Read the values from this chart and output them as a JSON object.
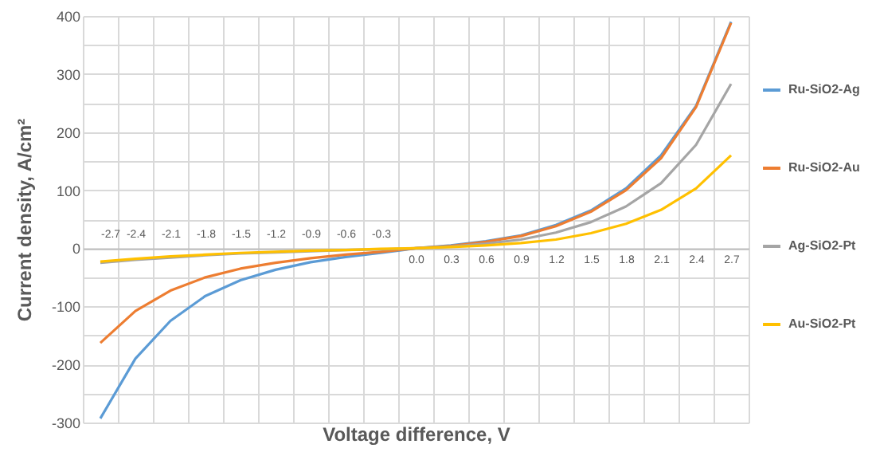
{
  "chart_data": {
    "type": "line",
    "xlabel": "Voltage difference, V",
    "ylabel": "Current density, A/cm²",
    "categories": [
      "-2.7",
      "-2.4",
      "-2.1",
      "-1.8",
      "-1.5",
      "-1.2",
      "-0.9",
      "-0.6",
      "-0.3",
      "0.0",
      "0.3",
      "0.6",
      "0.9",
      "1.2",
      "1.5",
      "1.8",
      "2.1",
      "2.4",
      "2.7"
    ],
    "series": [
      {
        "name": "Ru-SiO2-Ag",
        "color": "#5b9bd5",
        "values": [
          -293,
          -190,
          -125,
          -82,
          -55,
          -37,
          -24,
          -15,
          -8,
          0,
          5,
          12,
          22,
          40,
          65,
          103,
          160,
          245,
          390
        ]
      },
      {
        "name": "Ru-SiO2-Au",
        "color": "#ed7d31",
        "values": [
          -163,
          -108,
          -73,
          -50,
          -35,
          -25,
          -17,
          -11,
          -6,
          0,
          4,
          11,
          21,
          38,
          63,
          100,
          155,
          243,
          388
        ]
      },
      {
        "name": "Ag-SiO2-Pt",
        "color": "#a5a5a5",
        "values": [
          -25,
          -20,
          -16,
          -12,
          -9,
          -7,
          -5,
          -3,
          -2,
          0,
          3,
          8,
          15,
          27,
          45,
          72,
          112,
          178,
          283
        ]
      },
      {
        "name": "Au-SiO2-Pt",
        "color": "#ffc000",
        "values": [
          -23,
          -18,
          -14,
          -11,
          -8,
          -6,
          -4,
          -3,
          -1,
          0,
          2,
          5,
          9,
          15,
          26,
          42,
          66,
          103,
          160
        ]
      }
    ],
    "ylim": [
      -300,
      400
    ],
    "yticks": [
      -300,
      {
        "value": -250,
        "label": null
      },
      -200,
      {
        "value": -150,
        "label": null
      },
      -100,
      {
        "value": -50,
        "label": null
      },
      0,
      {
        "value": 50,
        "label": null
      },
      100,
      {
        "value": 150,
        "label": null
      },
      200,
      {
        "value": 250,
        "label": null
      },
      300,
      {
        "value": 350,
        "label": null
      },
      400
    ],
    "grid": true,
    "legend": "right",
    "marker": "none",
    "line_style": "solid"
  }
}
